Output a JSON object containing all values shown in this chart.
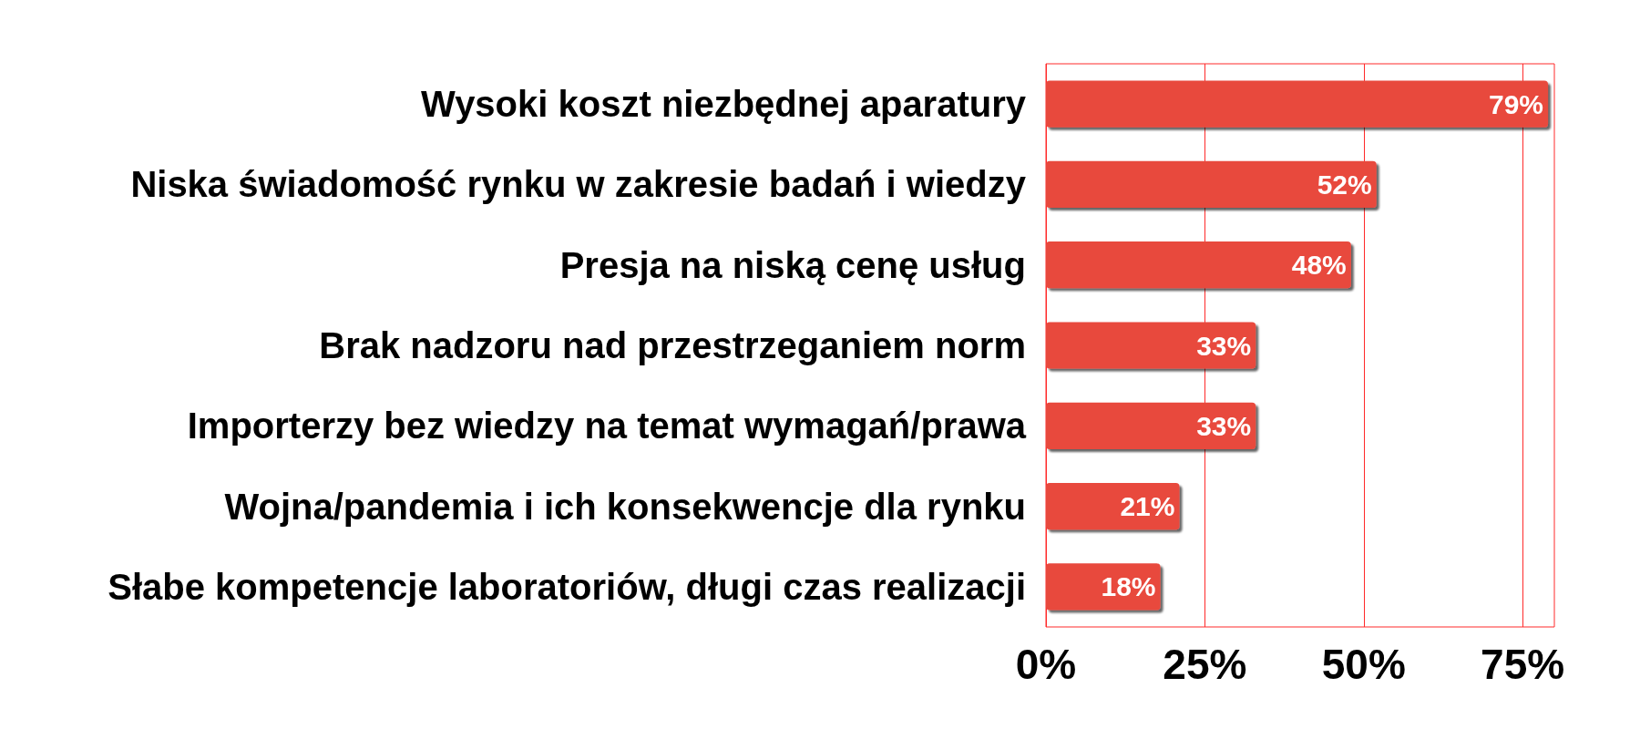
{
  "chart_data": {
    "type": "bar",
    "orientation": "horizontal",
    "categories": [
      "Wysoki koszt niezbędnej aparatury",
      "Niska świadomość rynku w zakresie badań i wiedzy",
      "Presja na niską cenę usług",
      "Brak nadzoru nad przestrzeganiem norm",
      "Importerzy bez wiedzy na temat wymagań/prawa",
      "Wojna/pandemia i ich konsekwencje dla rynku",
      "Słabe kompetencje laboratoriów, długi czas realizacji"
    ],
    "values": [
      79,
      52,
      48,
      33,
      33,
      21,
      18
    ],
    "value_labels": [
      "79%",
      "52%",
      "48%",
      "33%",
      "33%",
      "21%",
      "18%"
    ],
    "color": "#e8483e",
    "xlim": [
      0,
      80
    ],
    "xticks": [
      {
        "value": 0,
        "label": "0%"
      },
      {
        "value": 25,
        "label": "25%"
      },
      {
        "value": 50,
        "label": "50%"
      },
      {
        "value": 75,
        "label": "75%"
      }
    ],
    "grid": "x"
  }
}
